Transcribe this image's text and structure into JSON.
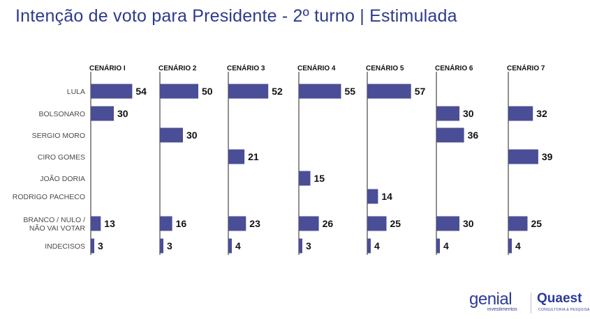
{
  "page": {
    "title": "Intenção de voto para Presidente - 2º turno | Estimulada"
  },
  "chart_data": {
    "type": "bar",
    "orientation": "horizontal",
    "title": "Intenção de voto para Presidente - 2º turno | Estimulada",
    "categories": [
      "LULA",
      "BOLSONARO",
      "SERGIO MORO",
      "CIRO GOMES",
      "JOÃO DORIA",
      "RODRIGO PACHECO",
      "BRANCO / NULO / NÃO VAI VOTAR",
      "INDECISOS"
    ],
    "category_lines": [
      [
        "LULA"
      ],
      [
        "BOLSONARO"
      ],
      [
        "SERGIO MORO"
      ],
      [
        "CIRO GOMES"
      ],
      [
        "JOÃO DORIA"
      ],
      [
        "RODRIGO PACHECO"
      ],
      [
        "BRANCO / NULO /",
        "NÃO VAI VOTAR"
      ],
      [
        "INDECISOS"
      ]
    ],
    "bar_color": "#4a4e96",
    "series": [
      {
        "name": "CENÁRIO I",
        "values": [
          54,
          30,
          null,
          null,
          null,
          null,
          13,
          3
        ]
      },
      {
        "name": "CENÁRIO 2",
        "values": [
          50,
          null,
          30,
          null,
          null,
          null,
          16,
          3
        ]
      },
      {
        "name": "CENÁRIO 3",
        "values": [
          52,
          null,
          null,
          21,
          null,
          null,
          23,
          4
        ]
      },
      {
        "name": "CENÁRIO 4",
        "values": [
          55,
          null,
          null,
          null,
          15,
          null,
          26,
          3
        ]
      },
      {
        "name": "CENÁRIO 5",
        "values": [
          57,
          null,
          null,
          null,
          null,
          14,
          25,
          4
        ]
      },
      {
        "name": "CENÁRIO 6",
        "values": [
          null,
          30,
          36,
          null,
          null,
          null,
          30,
          4
        ]
      },
      {
        "name": "CENÁRIO 7",
        "values": [
          null,
          32,
          null,
          39,
          null,
          null,
          25,
          4
        ]
      }
    ]
  },
  "logos": {
    "genial": {
      "name": "genial",
      "sub": "investimentos"
    },
    "quaest": {
      "name": "Quaest",
      "sub": "CONSULTORIA & PESQUISA"
    }
  }
}
